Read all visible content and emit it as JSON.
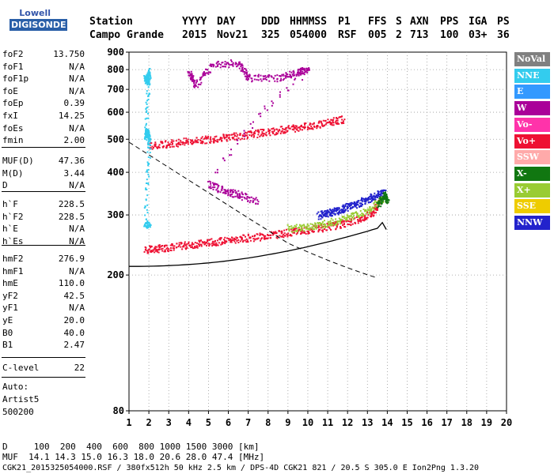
{
  "logo": {
    "top": "Lowell",
    "bottom": "DIGISONDE"
  },
  "header": {
    "labels": [
      "Station",
      "YYYY",
      "DAY",
      "DDD",
      "HHMMSS",
      "P1",
      "FFS",
      "S",
      "AXN",
      "PPS",
      "IGA",
      "PS"
    ],
    "values": [
      "Campo Grande",
      "2015",
      "Nov21",
      "325",
      "054000",
      "RSF",
      "005",
      "2",
      "713",
      "100",
      "03+",
      "36"
    ]
  },
  "params": {
    "g1": [
      [
        "foF2",
        "13.750"
      ],
      [
        "foF1",
        "N/A"
      ],
      [
        "foF1p",
        "N/A"
      ],
      [
        "foE",
        "N/A"
      ],
      [
        "foEp",
        "0.39"
      ],
      [
        "fxI",
        "14.25"
      ],
      [
        "foEs",
        "N/A"
      ],
      [
        "fmin",
        "2.00"
      ]
    ],
    "g2": [
      [
        "MUF(D)",
        "47.36"
      ],
      [
        "M(D)",
        "3.44"
      ],
      [
        "D",
        "N/A"
      ]
    ],
    "g3": [
      [
        "h`F",
        "228.5"
      ],
      [
        "h`F2",
        "228.5"
      ],
      [
        "h`E",
        "N/A"
      ],
      [
        "h`Es",
        "N/A"
      ]
    ],
    "g4": [
      [
        "hmF2",
        "276.9"
      ],
      [
        "hmF1",
        "N/A"
      ],
      [
        "hmE",
        "110.0"
      ],
      [
        "yF2",
        "42.5"
      ],
      [
        "yF1",
        "N/A"
      ],
      [
        "yE",
        "20.0"
      ],
      [
        "B0",
        "40.0"
      ],
      [
        "B1",
        "2.47"
      ]
    ],
    "g5": [
      [
        "C-level",
        "22"
      ]
    ]
  },
  "auto": [
    "Auto:",
    "Artist5",
    "500200"
  ],
  "footer": {
    "line1": "D     100  200  400  600  800 1000 1500 3000 [km]",
    "line2": "MUF  14.1 14.3 15.0 16.3 18.0 20.6 28.0 47.4 [MHz]",
    "line3": "CGK21_2015325054000.RSF / 380fx512h 50 kHz 2.5 km / DPS-4D CGK21 821 / 20.5 S 305.0 E Ion2Png 1.3.20"
  },
  "legend": [
    {
      "label": "NoVal",
      "color": "#808080"
    },
    {
      "label": "NNE",
      "color": "#33ccee"
    },
    {
      "label": "E",
      "color": "#3399ff"
    },
    {
      "label": "W",
      "color": "#aa0099"
    },
    {
      "label": "Vo-",
      "color": "#ff33aa"
    },
    {
      "label": "Vo+",
      "color": "#ee1133"
    },
    {
      "label": "SSW",
      "color": "#ffaaaa"
    },
    {
      "label": "X-",
      "color": "#117711"
    },
    {
      "label": "X+",
      "color": "#99cc33"
    },
    {
      "label": "SSE",
      "color": "#eecc00"
    },
    {
      "label": "NNW",
      "color": "#2222cc"
    }
  ],
  "chart_data": {
    "type": "scatter",
    "title": "",
    "xlabel": "",
    "ylabel": "",
    "xlim": [
      1,
      20
    ],
    "ylim": [
      80,
      900
    ],
    "x_ticks": [
      1,
      2,
      3,
      4,
      5,
      6,
      7,
      8,
      9,
      10,
      11,
      12,
      13,
      14,
      15,
      16,
      17,
      18,
      19,
      20
    ],
    "y_ticks": [
      80,
      200,
      300,
      400,
      500,
      600,
      700,
      800,
      900
    ],
    "y_scale": "log",
    "grid": "dotted",
    "legend_placement": "right",
    "series": [
      {
        "name": "Vo+",
        "color": "#ee1133",
        "points": [
          [
            1.8,
            238
          ],
          [
            2.5,
            240
          ],
          [
            3.5,
            244
          ],
          [
            4.5,
            248
          ],
          [
            5.5,
            252
          ],
          [
            6.5,
            256
          ],
          [
            7.5,
            260
          ],
          [
            8.5,
            265
          ],
          [
            9.5,
            270
          ],
          [
            10.5,
            275
          ],
          [
            11.5,
            282
          ],
          [
            12.5,
            292
          ],
          [
            13.2,
            305
          ],
          [
            13.6,
            330
          ]
        ]
      },
      {
        "name": "Vo+",
        "color": "#ee1133",
        "points": [
          [
            2.0,
            480
          ],
          [
            3.0,
            488
          ],
          [
            4.0,
            495
          ],
          [
            5.0,
            502
          ],
          [
            6.0,
            510
          ],
          [
            7.0,
            518
          ],
          [
            8.0,
            528
          ],
          [
            9.0,
            538
          ],
          [
            10.0,
            550
          ],
          [
            11.0,
            562
          ],
          [
            11.8,
            575
          ]
        ]
      },
      {
        "name": "NNE",
        "color": "#33ccee",
        "points": [
          [
            1.8,
            760
          ],
          [
            1.9,
            740
          ],
          [
            2.0,
            790
          ],
          [
            1.8,
            510
          ],
          [
            1.9,
            530
          ],
          [
            2.0,
            495
          ],
          [
            1.8,
            280
          ],
          [
            2.0,
            285
          ]
        ]
      },
      {
        "name": "W",
        "color": "#aa0099",
        "points": [
          [
            4.0,
            790
          ],
          [
            4.3,
            720
          ],
          [
            5.2,
            830
          ],
          [
            6.5,
            840
          ],
          [
            7.0,
            760
          ],
          [
            8.5,
            760
          ],
          [
            9.5,
            790
          ],
          [
            10.0,
            800
          ],
          [
            5.0,
            370
          ],
          [
            5.8,
            355
          ],
          [
            6.5,
            345
          ],
          [
            7.5,
            330
          ]
        ]
      },
      {
        "name": "NNW",
        "color": "#2222cc",
        "points": [
          [
            10.5,
            300
          ],
          [
            11.0,
            305
          ],
          [
            11.5,
            310
          ],
          [
            12.0,
            318
          ],
          [
            12.5,
            325
          ],
          [
            13.0,
            335
          ],
          [
            13.5,
            345
          ],
          [
            13.9,
            350
          ]
        ]
      },
      {
        "name": "X+",
        "color": "#99cc33",
        "points": [
          [
            9.0,
            275
          ],
          [
            10.0,
            278
          ],
          [
            11.0,
            285
          ],
          [
            12.0,
            295
          ],
          [
            13.0,
            310
          ],
          [
            13.8,
            340
          ]
        ]
      },
      {
        "name": "X-",
        "color": "#117711",
        "points": [
          [
            13.5,
            320
          ],
          [
            13.8,
            345
          ],
          [
            14.0,
            330
          ]
        ]
      }
    ]
  }
}
